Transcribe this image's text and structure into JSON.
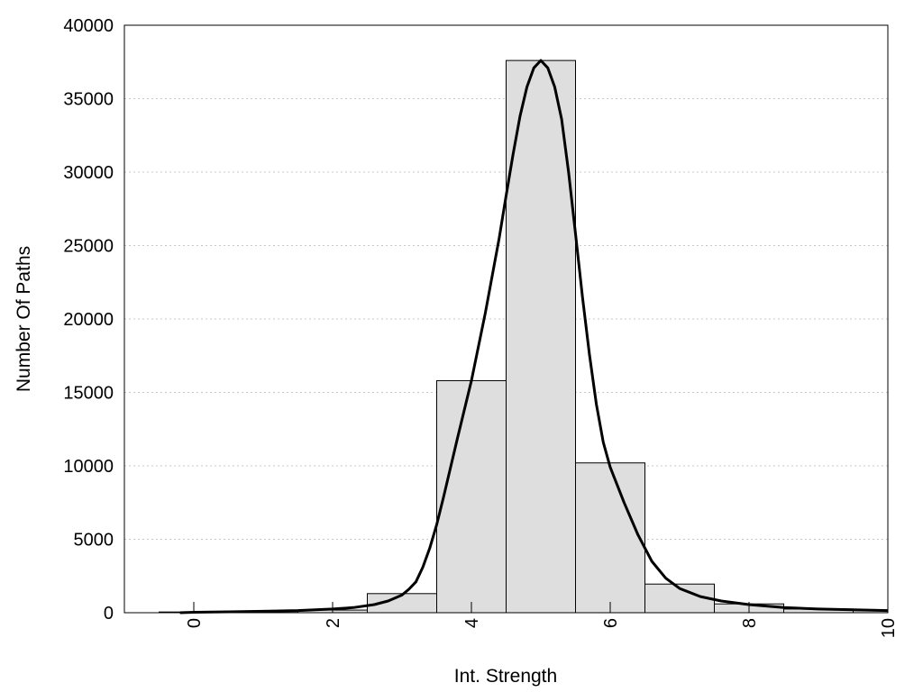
{
  "chart_data": {
    "type": "bar",
    "xlabel": "Int. Strength",
    "ylabel": "Number Of Paths",
    "xlim": [
      -1,
      10
    ],
    "ylim": [
      0,
      40000
    ],
    "x_ticks": [
      "0",
      "2",
      "4",
      "6",
      "8",
      "10"
    ],
    "y_ticks": [
      "0",
      "5000",
      "10000",
      "15000",
      "20000",
      "25000",
      "30000",
      "35000",
      "40000"
    ],
    "grid": "horizontal dotted",
    "bar_width": 1,
    "bars": {
      "centers": [
        0,
        1,
        2,
        3,
        4,
        5,
        6,
        7,
        8,
        9,
        10
      ],
      "values": [
        50,
        80,
        180,
        1300,
        15800,
        37600,
        10200,
        1950,
        600,
        250,
        150
      ]
    },
    "fit_curve": {
      "x": [
        -0.2,
        0,
        0.5,
        1,
        1.5,
        2,
        2.3,
        2.6,
        2.8,
        3,
        3.1,
        3.2,
        3.3,
        3.4,
        3.5,
        3.6,
        3.8,
        4,
        4.2,
        4.4,
        4.5,
        4.6,
        4.7,
        4.8,
        4.9,
        5,
        5.1,
        5.2,
        5.3,
        5.4,
        5.5,
        5.6,
        5.7,
        5.8,
        5.9,
        6,
        6.2,
        6.4,
        6.6,
        6.8,
        7,
        7.3,
        7.6,
        8,
        8.5,
        9,
        9.5,
        10
      ],
      "y": [
        0,
        30,
        60,
        100,
        150,
        250,
        350,
        550,
        800,
        1200,
        1600,
        2100,
        3100,
        4400,
        6000,
        7900,
        11900,
        15800,
        20400,
        25500,
        28400,
        31200,
        33800,
        35800,
        37100,
        37600,
        37100,
        35800,
        33600,
        30000,
        25800,
        21500,
        17600,
        14200,
        11600,
        9900,
        7500,
        5300,
        3500,
        2350,
        1650,
        1100,
        800,
        550,
        350,
        250,
        200,
        150
      ]
    },
    "colors": {
      "bar_fill": "#dedede",
      "bar_edge": "#000000",
      "curve": "#000000",
      "grid": "#c8c8c8"
    }
  }
}
